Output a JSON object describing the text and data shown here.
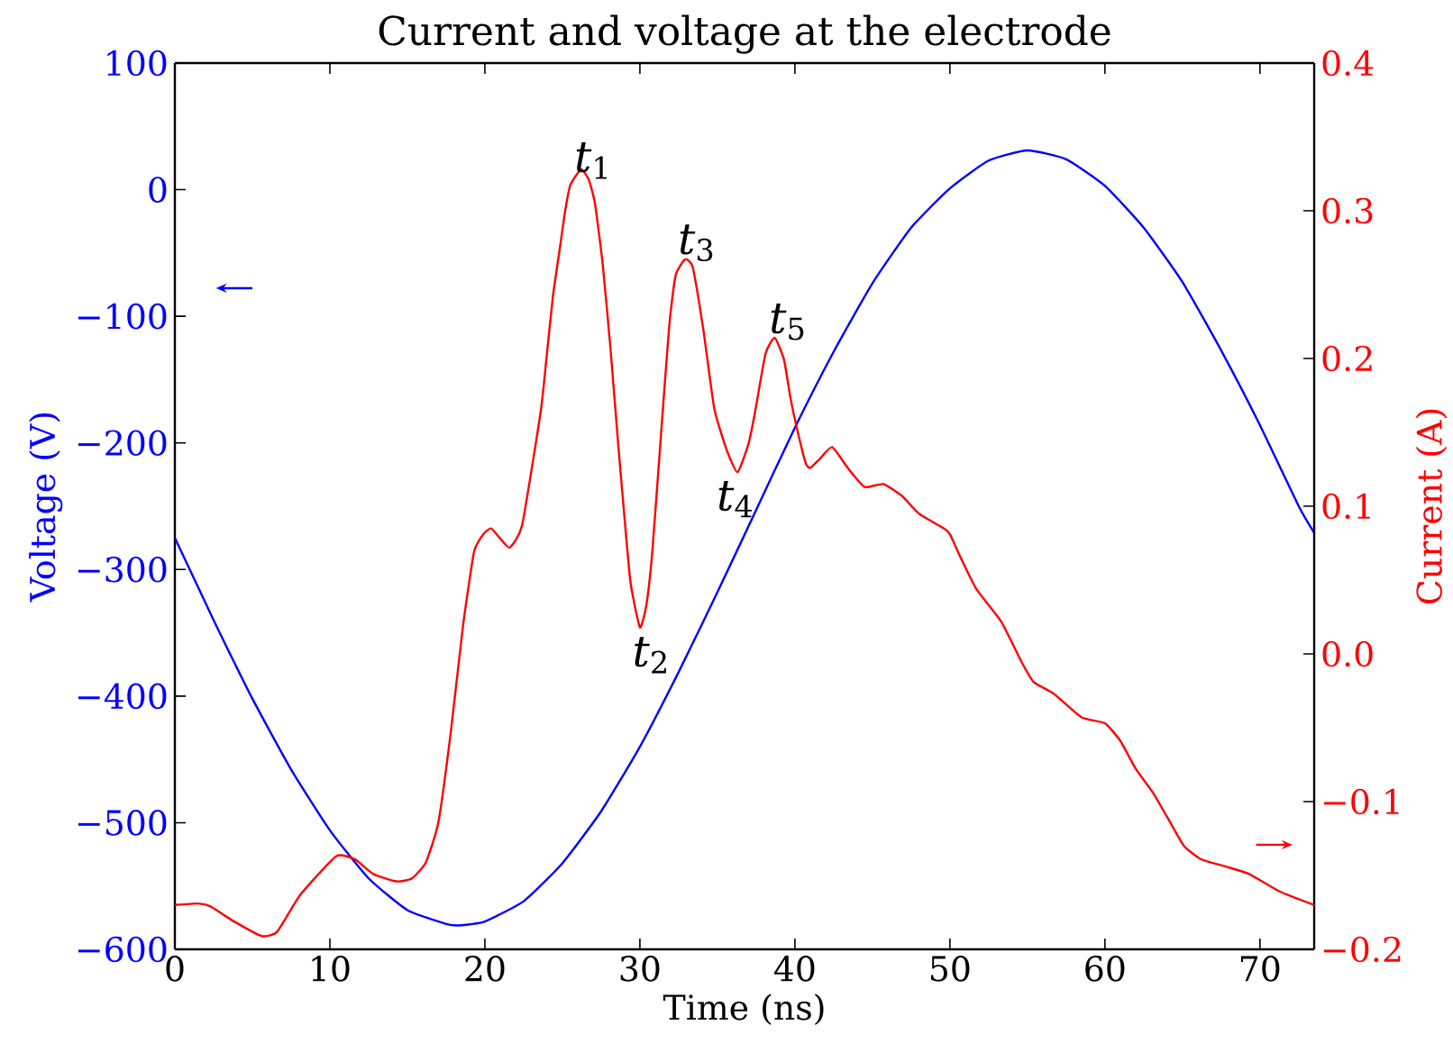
{
  "chart_data": {
    "type": "line",
    "title": "Current and voltage at the electrode",
    "xlabel": "Time (ns)",
    "ylabel": "Voltage (V)",
    "y2label": "Current (A)",
    "xlim": [
      0,
      73.5
    ],
    "xticks": [
      0,
      10,
      20,
      30,
      40,
      50,
      60,
      70
    ],
    "ylim": [
      -600,
      100
    ],
    "yticks": [
      {
        "value": -600,
        "label": "−600"
      },
      {
        "value": -500,
        "label": "−500"
      },
      {
        "value": -400,
        "label": "−400"
      },
      {
        "value": -300,
        "label": "−300"
      },
      {
        "value": -200,
        "label": "−200"
      },
      {
        "value": -100,
        "label": "−100"
      },
      0,
      100
    ],
    "y2lim": [
      -0.2,
      0.4
    ],
    "y2ticks": [
      {
        "value": -0.2,
        "label": "−0.2"
      },
      {
        "value": -0.1,
        "label": "−0.1"
      },
      {
        "value": 0,
        "label": "0.0"
      },
      0.1,
      0.2,
      0.3,
      0.4
    ],
    "series": [
      {
        "color": "#0000ff",
        "x": [
          0,
          2.5,
          5,
          7.5,
          10,
          12.5,
          15,
          17.5,
          18.5,
          20,
          22.5,
          25,
          27.5,
          30,
          32.5,
          35,
          37.5,
          40,
          42.5,
          45,
          47.5,
          50,
          52.5,
          55,
          57.5,
          60,
          62.5,
          65,
          67.5,
          70,
          72.5,
          73.5
        ],
        "values": [
          -275,
          -340,
          -402,
          -458,
          -506,
          -544,
          -569,
          -580,
          -581,
          -578,
          -562,
          -532,
          -491,
          -440,
          -381,
          -318,
          -253,
          -188,
          -128,
          -74,
          -30,
          1,
          23,
          31,
          24,
          3,
          -30,
          -73,
          -127,
          -186,
          -250,
          -271
        ]
      },
      {
        "color": "#ff0000",
        "axis": "y2",
        "x": [
          0,
          1.5,
          2.3,
          3.8,
          5.6,
          6.6,
          8.1,
          10.4,
          11.6,
          12.8,
          14.3,
          15.3,
          16.2,
          17.0,
          17.8,
          18.6,
          19.3,
          19.9,
          20.4,
          21.0,
          21.6,
          22.4,
          23.6,
          24.0,
          24.4,
          24.8,
          25.15,
          25.5,
          26.2,
          26.7,
          27.1,
          27.6,
          28.1,
          28.6,
          29.0,
          29.4,
          30.0,
          30.4,
          30.8,
          31.4,
          31.9,
          32.3,
          32.9,
          33.4,
          34.1,
          34.8,
          35.6,
          36.3,
          37.0,
          37.4,
          38.1,
          38.7,
          39.3,
          39.7,
          40.1,
          40.7,
          41.0,
          41.6,
          42.4,
          43.4,
          44.5,
          45.7,
          46.9,
          48.0,
          49.6,
          50.0,
          50.7,
          51.7,
          53.3,
          54.6,
          55.4,
          56.7,
          58.5,
          60.0,
          61.0,
          62.0,
          63.1,
          64.1,
          65.1,
          66.2,
          67.8,
          69.3,
          71.3,
          73.5
        ],
        "values": [
          -0.17,
          -0.169,
          -0.171,
          -0.181,
          -0.191,
          -0.188,
          -0.163,
          -0.137,
          -0.139,
          -0.149,
          -0.154,
          -0.152,
          -0.141,
          -0.114,
          -0.053,
          0.02,
          0.069,
          0.081,
          0.085,
          0.078,
          0.072,
          0.087,
          0.164,
          0.203,
          0.243,
          0.272,
          0.298,
          0.317,
          0.328,
          0.321,
          0.305,
          0.264,
          0.207,
          0.142,
          0.093,
          0.048,
          0.018,
          0.032,
          0.069,
          0.154,
          0.223,
          0.256,
          0.267,
          0.262,
          0.219,
          0.166,
          0.138,
          0.123,
          0.142,
          0.162,
          0.203,
          0.214,
          0.199,
          0.174,
          0.154,
          0.129,
          0.126,
          0.132,
          0.14,
          0.126,
          0.113,
          0.115,
          0.107,
          0.095,
          0.085,
          0.081,
          0.065,
          0.044,
          0.022,
          -0.005,
          -0.019,
          -0.027,
          -0.043,
          -0.047,
          -0.059,
          -0.078,
          -0.094,
          -0.112,
          -0.13,
          -0.139,
          -0.144,
          -0.149,
          -0.161,
          -0.17
        ]
      }
    ],
    "annotations": [
      "*t*$_{1}$",
      "*t*$_{2}$",
      "*t*$_{3}$",
      "*t*$_{4}$",
      "*t*$_{5}$"
    ]
  }
}
